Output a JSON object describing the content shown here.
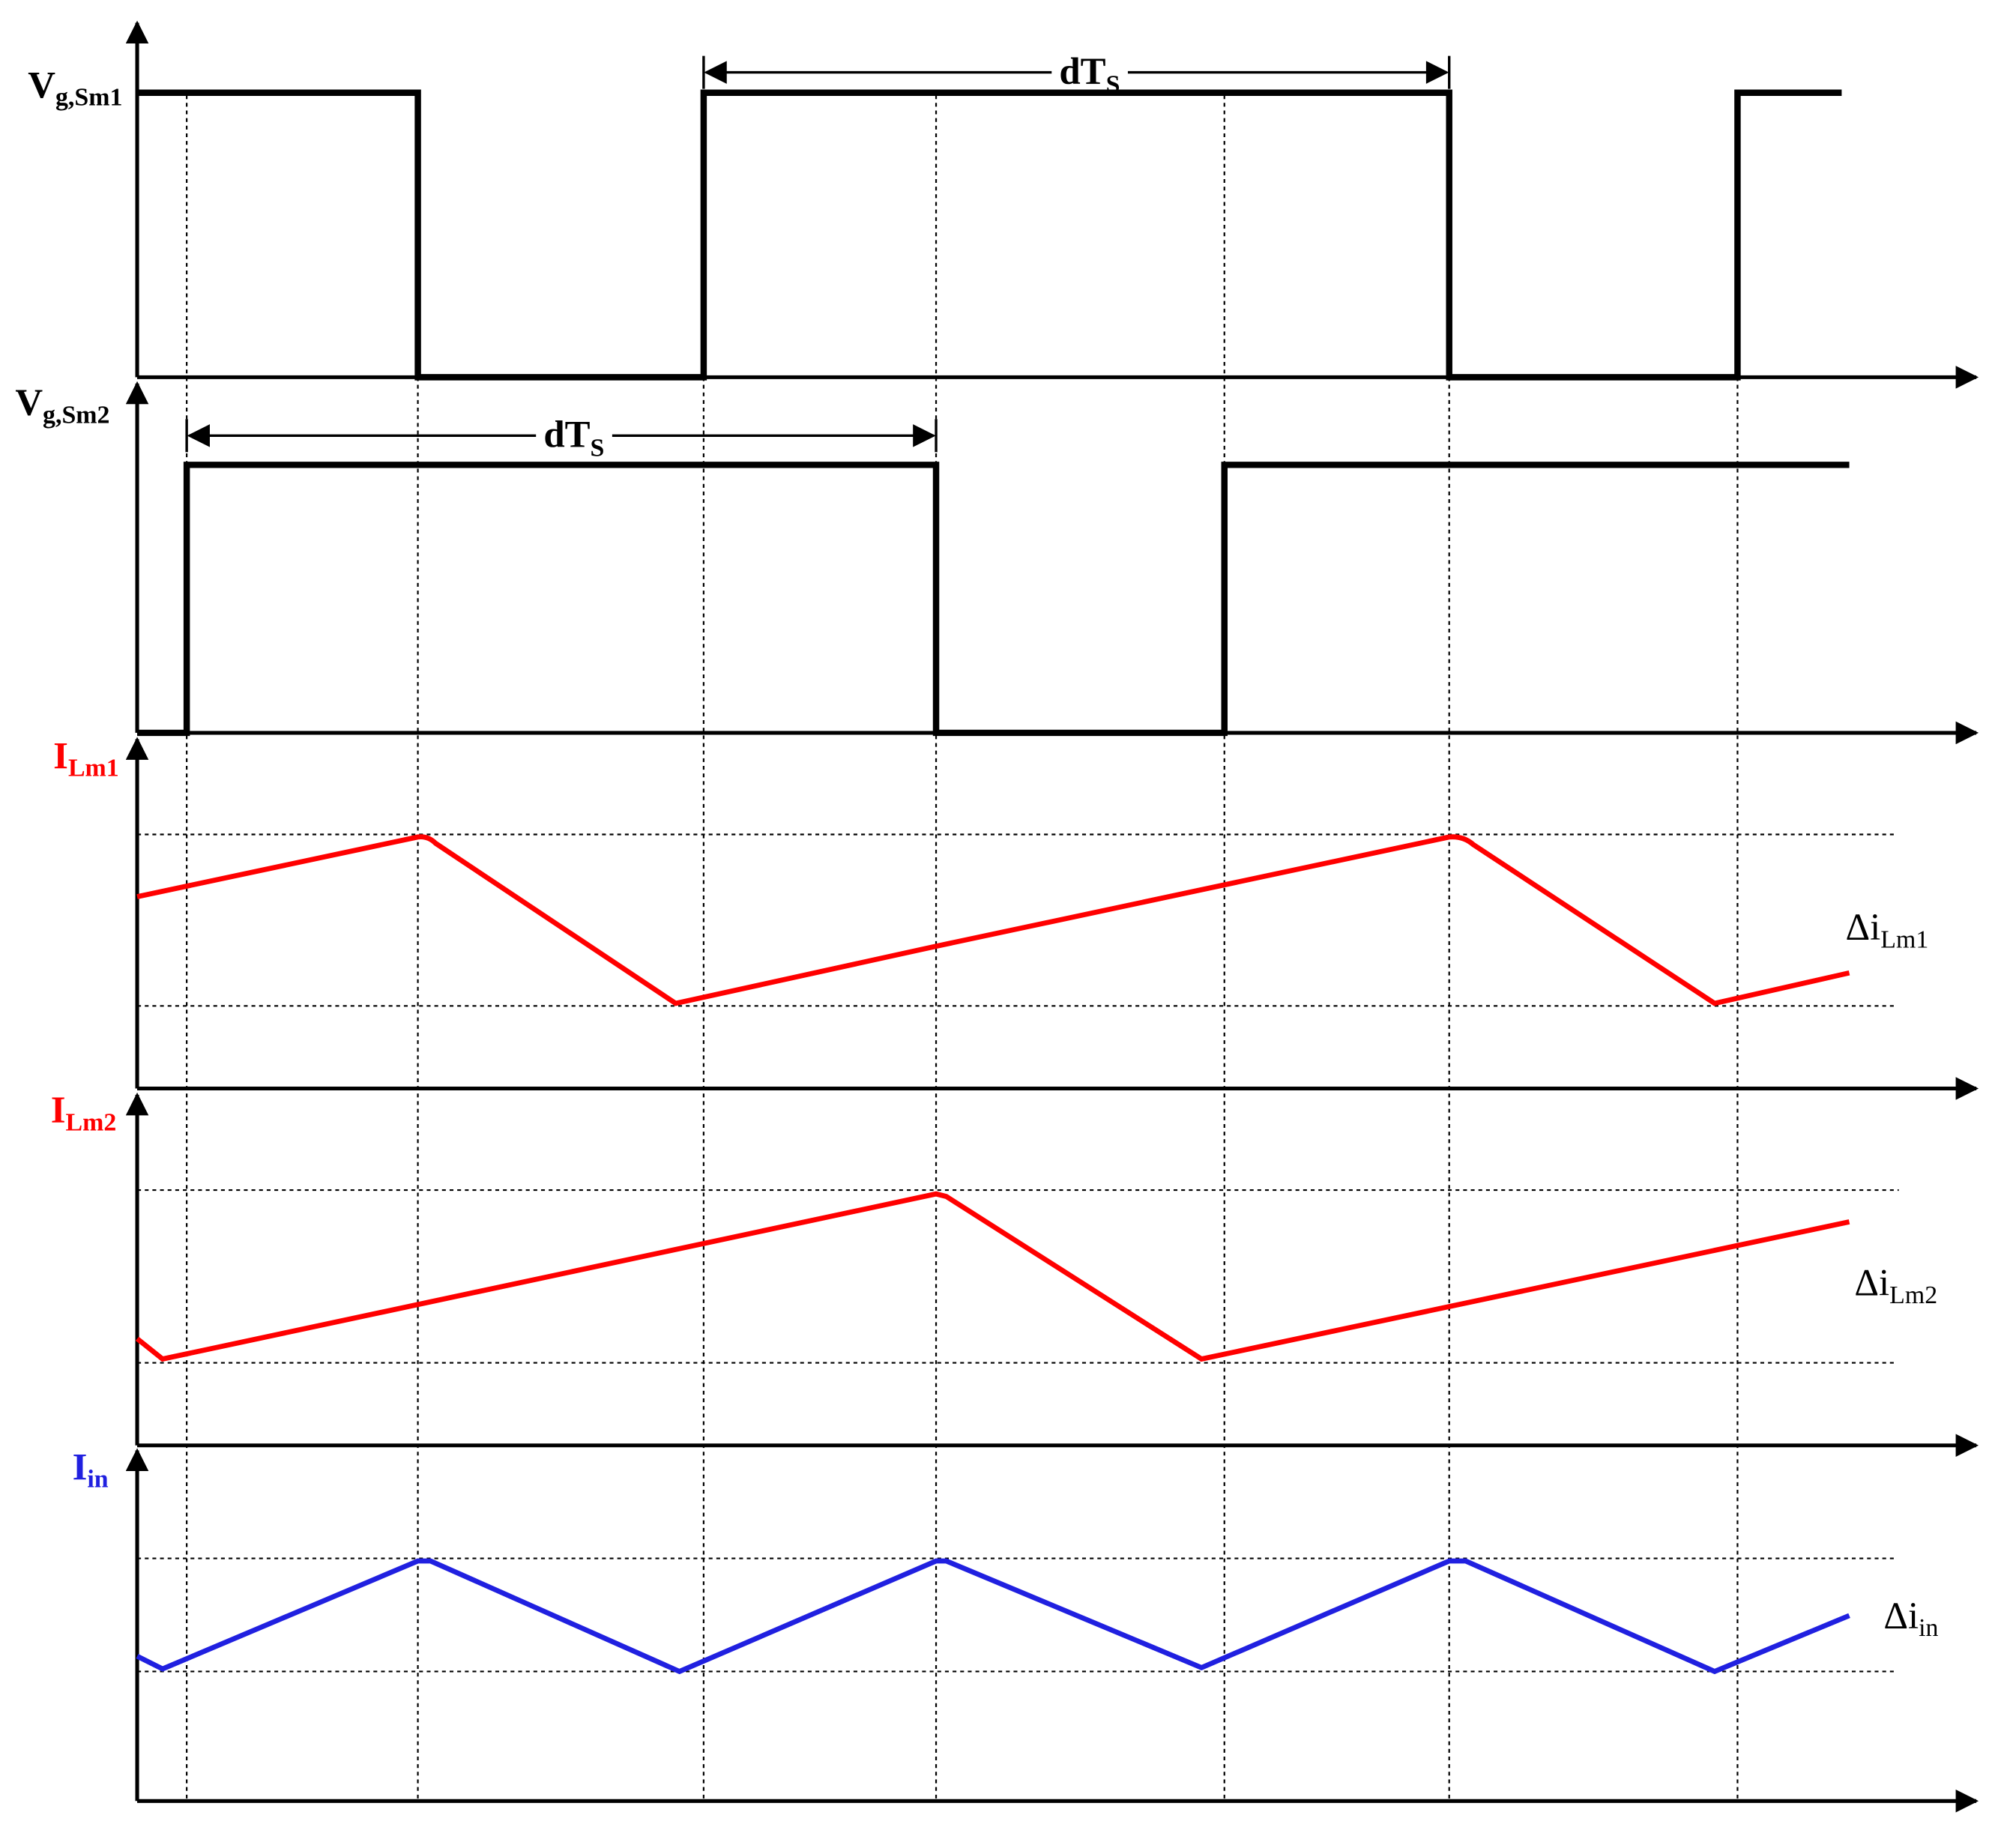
{
  "axes": [
    {
      "label": {
        "main": "V",
        "sub": "g,Sm1"
      }
    },
    {
      "label": {
        "main": "V",
        "sub": "g,Sm2"
      }
    },
    {
      "label": {
        "main": "I",
        "sub": "Lm1"
      },
      "ripple": {
        "main": "Δi",
        "sub": "Lm1"
      }
    },
    {
      "label": {
        "main": "I",
        "sub": "Lm2"
      },
      "ripple": {
        "main": "Δi",
        "sub": "Lm2"
      }
    },
    {
      "label": {
        "main": "I",
        "sub": "in"
      },
      "ripple": {
        "main": "Δi",
        "sub": "in"
      }
    }
  ],
  "intervals": [
    {
      "main": "dT",
      "sub": "S"
    },
    {
      "main": "dT",
      "sub": "S"
    }
  ]
}
